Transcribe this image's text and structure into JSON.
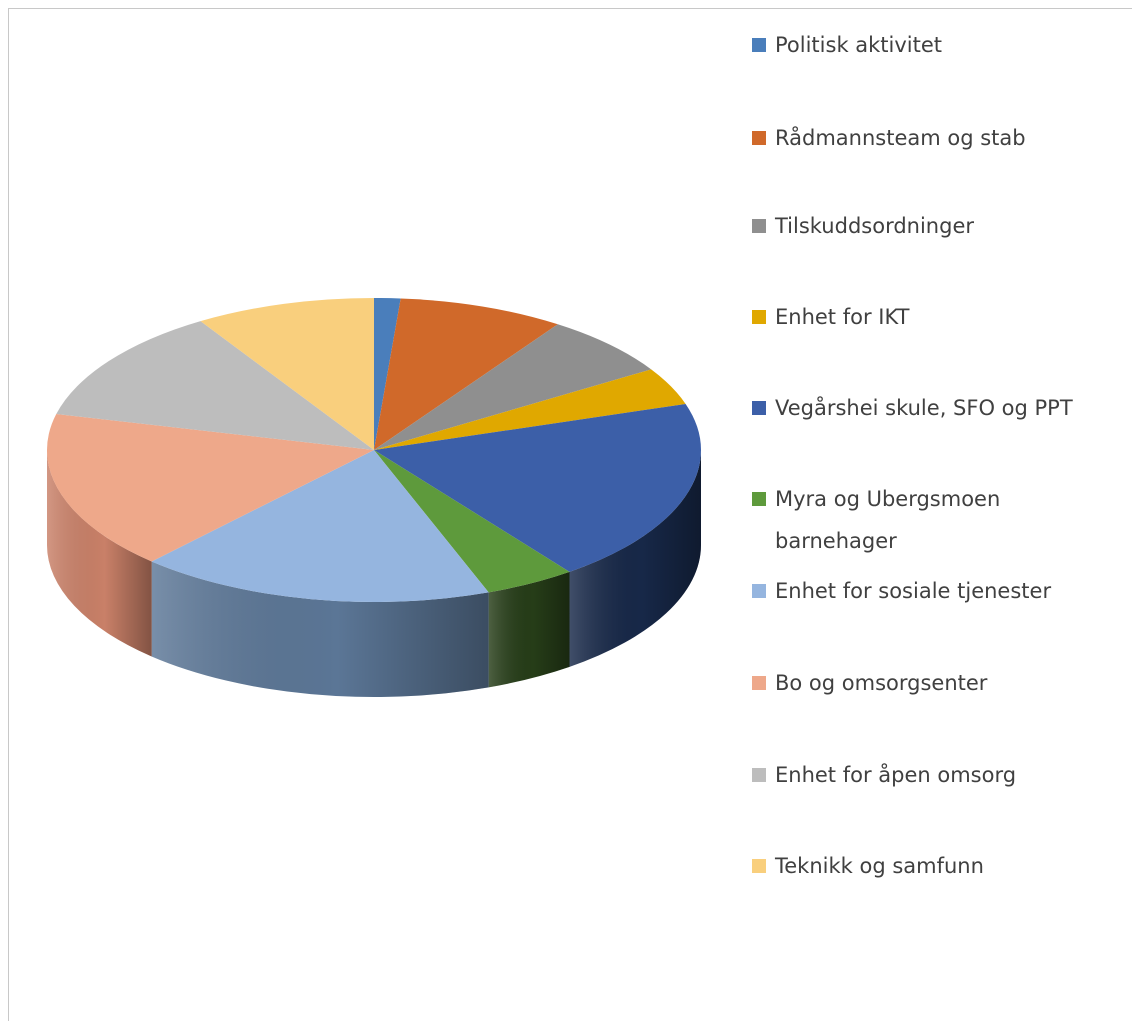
{
  "colors": {
    "background": "#ffffff",
    "frame": "#c8c8c8",
    "text": "#404040"
  },
  "chart_data": {
    "type": "pie",
    "style": "3d",
    "title": "",
    "legend_position": "right",
    "categories": [
      "Politisk aktivitet",
      "Rådmannsteam og stab",
      "Tilskuddsordninger",
      "Enhet for IKT",
      "Vegårshei skule, SFO og PPT",
      "Myra og Ubergsmoen barnehager",
      "Enhet for sosiale tjenester",
      "Bo og omsorgsenter",
      "Enhet for åpen omsorg",
      "Teknikk og samfunn"
    ],
    "values": [
      1.3,
      8.2,
      6.6,
      4.0,
      19.7,
      4.5,
      17.6,
      16.9,
      12.3,
      8.9
    ],
    "colors": [
      "#4A7EBB",
      "#D0692A",
      "#8F8F8F",
      "#E0A800",
      "#3C5FA8",
      "#5E9A3C",
      "#95B5DF",
      "#EEA88A",
      "#BDBDBD",
      "#F9CF7D"
    ],
    "side_colors": [
      "#2C4D74",
      "#7D3F19",
      "#565656",
      "#876500",
      "#172848",
      "#263D18",
      "#5B7696",
      "#C98068",
      "#7A7A7A",
      "#B8955A"
    ]
  }
}
